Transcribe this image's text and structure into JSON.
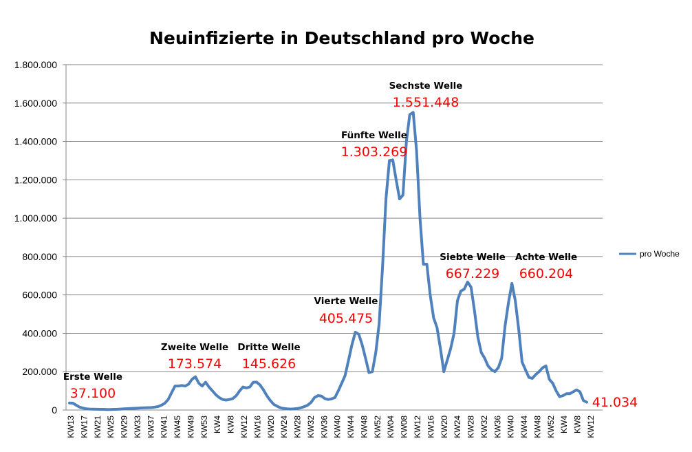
{
  "chart_data": {
    "type": "line",
    "title": "Neuinfizierte in Deutschland pro Woche",
    "xlabel": "",
    "ylabel": "",
    "ylim": [
      0,
      1800000
    ],
    "y_ticks": [
      "0",
      "200.000",
      "400.000",
      "600.000",
      "800.000",
      "1.000.000",
      "1.200.000",
      "1.400.000",
      "1.600.000",
      "1.800.000"
    ],
    "x_tick_labels": [
      "KW13",
      "KW17",
      "KW21",
      "KW25",
      "KW29",
      "KW33",
      "KW37",
      "KW41",
      "KW45",
      "KW49",
      "KW53",
      "KW4",
      "KW8",
      "KW12",
      "KW16",
      "KW20",
      "KW24",
      "KW28",
      "KW32",
      "KW36",
      "KW40",
      "KW44",
      "KW48",
      "KW52",
      "KW04",
      "KW08",
      "KW12",
      "KW16",
      "KW20",
      "KW24",
      "KW28",
      "KW32",
      "KW36",
      "KW40",
      "KW44",
      "KW48",
      "KW52",
      "KW4",
      "KW8",
      "KW12"
    ],
    "grid": true,
    "legend_position": "right",
    "series": [
      {
        "name": "pro Woche",
        "color": "#4f81bd",
        "values": [
          37100,
          36000,
          25000,
          15000,
          10000,
          6000,
          5000,
          4500,
          4000,
          3500,
          3500,
          3000,
          3000,
          3500,
          4000,
          5000,
          6000,
          7000,
          8000,
          9000,
          10000,
          11000,
          12000,
          12500,
          13000,
          15000,
          18000,
          25000,
          35000,
          55000,
          90000,
          125000,
          125000,
          128000,
          125000,
          135000,
          160000,
          173574,
          140000,
          125000,
          145000,
          120000,
          100000,
          80000,
          65000,
          55000,
          52000,
          55000,
          60000,
          75000,
          100000,
          120000,
          115000,
          120000,
          145000,
          145626,
          130000,
          105000,
          75000,
          50000,
          30000,
          20000,
          12000,
          8000,
          6000,
          5000,
          6000,
          8000,
          12000,
          18000,
          25000,
          40000,
          65000,
          75000,
          73000,
          60000,
          55000,
          58000,
          65000,
          100000,
          140000,
          180000,
          260000,
          340000,
          405475,
          395000,
          340000,
          270000,
          195000,
          200000,
          300000,
          450000,
          750000,
          1100000,
          1300000,
          1303269,
          1200000,
          1100000,
          1120000,
          1400000,
          1540000,
          1551448,
          1350000,
          1000000,
          760000,
          760000,
          600000,
          480000,
          430000,
          320000,
          200000,
          260000,
          320000,
          400000,
          570000,
          620000,
          630000,
          667229,
          640000,
          520000,
          380000,
          300000,
          270000,
          230000,
          210000,
          200000,
          220000,
          270000,
          440000,
          560000,
          660204,
          570000,
          420000,
          250000,
          210000,
          170000,
          165000,
          185000,
          200000,
          220000,
          230000,
          160000,
          140000,
          100000,
          70000,
          75000,
          85000,
          85000,
          95000,
          105000,
          95000,
          50000,
          41034
        ]
      }
    ],
    "annotations": [
      {
        "name": "Erste Welle",
        "value": "37.100"
      },
      {
        "name": "Zweite Welle",
        "value": "173.574"
      },
      {
        "name": "Dritte Welle",
        "value": "145.626"
      },
      {
        "name": "Vierte Welle",
        "value": "405.475"
      },
      {
        "name": "Fünfte Welle",
        "value": "1.303.269"
      },
      {
        "name": "Sechste Welle",
        "value": "1.551.448"
      },
      {
        "name": "Siebte Welle",
        "value": "667.229"
      },
      {
        "name": "Achte Welle",
        "value": "660.204"
      },
      {
        "name": "",
        "value": "41.034"
      }
    ]
  }
}
